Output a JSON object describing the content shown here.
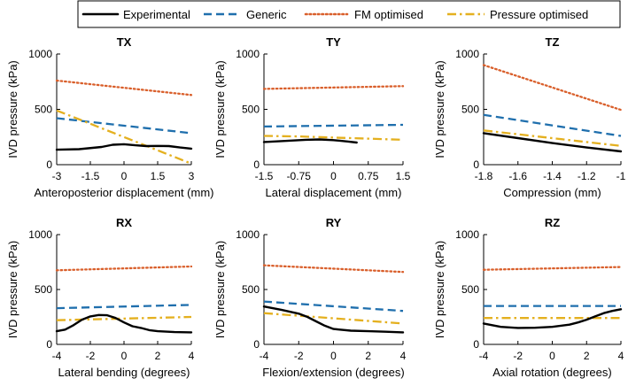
{
  "legend": {
    "entries": [
      {
        "label": "Experimental",
        "style": "solid",
        "color": "#000000"
      },
      {
        "label": "Generic",
        "style": "dashed",
        "color": "#1f6fad"
      },
      {
        "label": "FM optimised",
        "style": "dotted",
        "color": "#d95f2b"
      },
      {
        "label": "Pressure optimised",
        "style": "dashdot",
        "color": "#e4b01f"
      }
    ]
  },
  "chart_data": [
    {
      "type": "line",
      "title": "TX",
      "xlabel": "Anteroposterior displacement (mm)",
      "ylabel": "IVD pressure (kPa)",
      "xlim": [
        -3,
        3
      ],
      "ylim": [
        0,
        1000
      ],
      "xticks": [
        -3,
        -1.5,
        0,
        1.5,
        3
      ],
      "xticklabels": [
        "-3",
        "-1.5",
        "0",
        "1.5",
        "3"
      ],
      "yticks": [
        0,
        500,
        1000
      ],
      "yticklabels": [
        "0",
        "500",
        "1000"
      ],
      "series": [
        {
          "name": "Experimental",
          "x": [
            -3,
            -2,
            -1,
            -0.5,
            0,
            0.5,
            1,
            1.5,
            2,
            2.5,
            3
          ],
          "y": [
            135,
            140,
            160,
            180,
            185,
            175,
            168,
            170,
            168,
            155,
            145
          ]
        },
        {
          "name": "Generic",
          "x": [
            -3,
            3
          ],
          "y": [
            420,
            285
          ]
        },
        {
          "name": "FM optimised",
          "x": [
            -3,
            3
          ],
          "y": [
            760,
            630
          ]
        },
        {
          "name": "Pressure optimised",
          "x": [
            -3,
            3
          ],
          "y": [
            490,
            10
          ]
        }
      ]
    },
    {
      "type": "line",
      "title": "TY",
      "xlabel": "Lateral displacement (mm)",
      "ylabel": "IVD pressure (kPa)",
      "xlim": [
        -1.5,
        1.5
      ],
      "ylim": [
        0,
        1000
      ],
      "xticks": [
        -1.5,
        -0.75,
        0,
        0.75,
        1.5
      ],
      "xticklabels": [
        "-1.5",
        "-0.75",
        "0",
        "0.75",
        "1.5"
      ],
      "yticks": [
        0,
        500,
        1000
      ],
      "yticklabels": [
        "0",
        "500",
        "1000"
      ],
      "series": [
        {
          "name": "Experimental",
          "x": [
            -1.5,
            -1.0,
            -0.6,
            -0.3,
            0,
            0.3,
            0.5
          ],
          "y": [
            205,
            215,
            225,
            228,
            222,
            210,
            200
          ]
        },
        {
          "name": "Generic",
          "x": [
            -1.5,
            1.5
          ],
          "y": [
            345,
            360
          ]
        },
        {
          "name": "FM optimised",
          "x": [
            -1.5,
            1.5
          ],
          "y": [
            685,
            710
          ]
        },
        {
          "name": "Pressure optimised",
          "x": [
            -1.5,
            -0.75,
            0,
            0.75,
            1.5
          ],
          "y": [
            260,
            255,
            245,
            235,
            225
          ]
        }
      ]
    },
    {
      "type": "line",
      "title": "TZ",
      "xlabel": "Compression (mm)",
      "ylabel": "IVD pressure (kPa)",
      "xlim": [
        -1.8,
        -1
      ],
      "ylim": [
        0,
        1000
      ],
      "xticks": [
        -1.8,
        -1.6,
        -1.4,
        -1.2,
        -1
      ],
      "xticklabels": [
        "-1.8",
        "-1.6",
        "-1.4",
        "-1.2",
        "-1"
      ],
      "yticks": [
        0,
        500,
        1000
      ],
      "yticklabels": [
        "0",
        "500",
        "1000"
      ],
      "series": [
        {
          "name": "Experimental",
          "x": [
            -1.8,
            -1.6,
            -1.4,
            -1.2,
            -1.0
          ],
          "y": [
            285,
            240,
            195,
            155,
            120
          ]
        },
        {
          "name": "Generic",
          "x": [
            -1.8,
            -1.0
          ],
          "y": [
            450,
            260
          ]
        },
        {
          "name": "FM optimised",
          "x": [
            -1.8,
            -1.0
          ],
          "y": [
            900,
            495
          ]
        },
        {
          "name": "Pressure optimised",
          "x": [
            -1.8,
            -1.0
          ],
          "y": [
            310,
            170
          ]
        }
      ]
    },
    {
      "type": "line",
      "title": "RX",
      "xlabel": "Lateral bending (degrees)",
      "ylabel": "IVD pressure (kPa)",
      "xlim": [
        -4,
        4
      ],
      "ylim": [
        0,
        1000
      ],
      "xticks": [
        -4,
        -2,
        0,
        2,
        4
      ],
      "xticklabels": [
        "-4",
        "-2",
        "0",
        "2",
        "4"
      ],
      "yticks": [
        0,
        500,
        1000
      ],
      "yticklabels": [
        "0",
        "500",
        "1000"
      ],
      "series": [
        {
          "name": "Experimental",
          "x": [
            -4,
            -3.5,
            -3,
            -2.5,
            -2,
            -1.5,
            -1,
            -0.5,
            0,
            0.5,
            1,
            1.5,
            2,
            3,
            4
          ],
          "y": [
            120,
            135,
            175,
            225,
            255,
            268,
            265,
            240,
            200,
            165,
            150,
            130,
            120,
            112,
            110
          ]
        },
        {
          "name": "Generic",
          "x": [
            -4,
            4
          ],
          "y": [
            330,
            360
          ]
        },
        {
          "name": "FM optimised",
          "x": [
            -4,
            4
          ],
          "y": [
            675,
            710
          ]
        },
        {
          "name": "Pressure optimised",
          "x": [
            -4,
            4
          ],
          "y": [
            220,
            250
          ]
        }
      ]
    },
    {
      "type": "line",
      "title": "RY",
      "xlabel": "Flexion/extension (degrees)",
      "ylabel": "IVD pressure (kPa)",
      "xlim": [
        -4,
        4
      ],
      "ylim": [
        0,
        1000
      ],
      "xticks": [
        -4,
        -2,
        0,
        2,
        4
      ],
      "xticklabels": [
        "-4",
        "-2",
        "0",
        "2",
        "4"
      ],
      "yticks": [
        0,
        500,
        1000
      ],
      "yticklabels": [
        "0",
        "500",
        "1000"
      ],
      "series": [
        {
          "name": "Experimental",
          "x": [
            -4,
            -3,
            -2,
            -1.5,
            -1,
            -0.5,
            0,
            1,
            2,
            3,
            4
          ],
          "y": [
            345,
            315,
            280,
            250,
            210,
            170,
            140,
            125,
            120,
            115,
            110
          ]
        },
        {
          "name": "Generic",
          "x": [
            -4,
            4
          ],
          "y": [
            390,
            305
          ]
        },
        {
          "name": "FM optimised",
          "x": [
            -4,
            4
          ],
          "y": [
            720,
            660
          ]
        },
        {
          "name": "Pressure optimised",
          "x": [
            -4,
            4
          ],
          "y": [
            285,
            190
          ]
        }
      ]
    },
    {
      "type": "line",
      "title": "RZ",
      "xlabel": "Axial rotation (degrees)",
      "ylabel": "IVD pressure (kPa)",
      "xlim": [
        -4,
        4
      ],
      "ylim": [
        0,
        1000
      ],
      "xticks": [
        -4,
        -2,
        0,
        2,
        4
      ],
      "xticklabels": [
        "-4",
        "-2",
        "0",
        "2",
        "4"
      ],
      "yticks": [
        0,
        500,
        1000
      ],
      "yticklabels": [
        "0",
        "500",
        "1000"
      ],
      "series": [
        {
          "name": "Experimental",
          "x": [
            -4,
            -3,
            -2,
            -1,
            0,
            1,
            1.5,
            2,
            2.5,
            3,
            3.5,
            4
          ],
          "y": [
            190,
            160,
            150,
            152,
            160,
            180,
            200,
            225,
            255,
            285,
            305,
            320
          ]
        },
        {
          "name": "Generic",
          "x": [
            -4,
            4
          ],
          "y": [
            350,
            350
          ]
        },
        {
          "name": "FM optimised",
          "x": [
            -4,
            4
          ],
          "y": [
            680,
            705
          ]
        },
        {
          "name": "Pressure optimised",
          "x": [
            -4,
            4
          ],
          "y": [
            240,
            240
          ]
        }
      ]
    }
  ]
}
